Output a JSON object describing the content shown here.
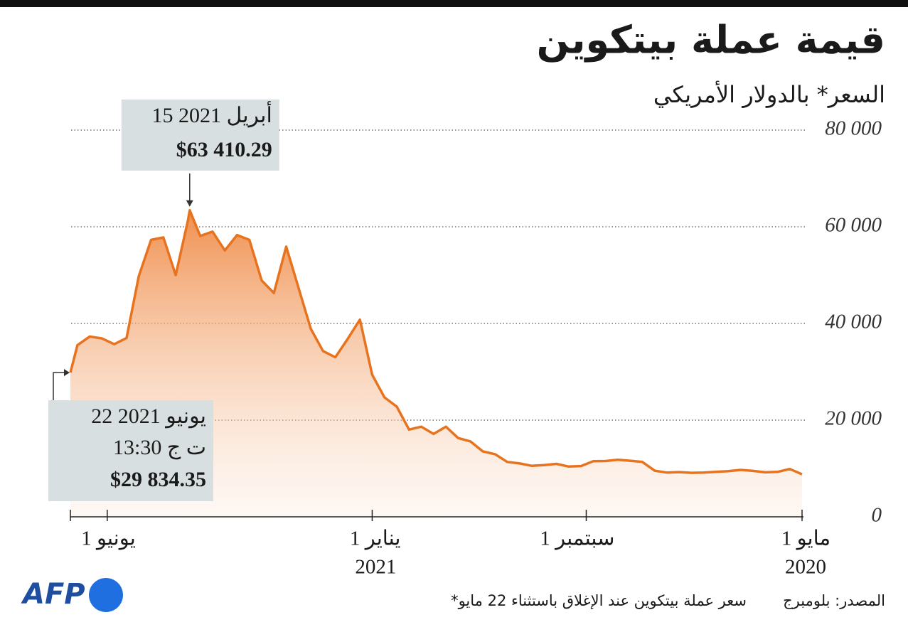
{
  "chart_data": {
    "type": "area",
    "title": "قيمة عملة بيتكوين",
    "subtitle": "السعر* بالدولار الأمريكي",
    "x_direction": "rtl",
    "grid": true,
    "color": "#e8731e",
    "xlim": [
      "2020-05-01",
      "2021-06-22"
    ],
    "xticks": [
      {
        "value": "2020-05-01",
        "label": "1 مايو"
      },
      {
        "value": "2020-09-01",
        "label": "1 سبتمبر"
      },
      {
        "value": "2021-01-01",
        "label": "1 يناير"
      },
      {
        "value": "2021-06-01",
        "label": "1 يونيو"
      }
    ],
    "xtick_years": [
      {
        "value": "2020-05-01",
        "label": "2020"
      },
      {
        "value": "2021-01-01",
        "label": "2021"
      }
    ],
    "ylim": [
      0,
      80000
    ],
    "yticks": [
      0,
      {
        "value": 20000,
        "label": "20 000"
      },
      {
        "value": 40000,
        "label": "40 000"
      },
      {
        "value": 60000,
        "label": "60 000"
      },
      {
        "value": 80000,
        "label": "80 000"
      }
    ],
    "x": [
      "2020-05-01",
      "2020-05-08",
      "2020-05-15",
      "2020-05-22",
      "2020-05-29",
      "2020-06-05",
      "2020-06-12",
      "2020-06-19",
      "2020-06-26",
      "2020-07-03",
      "2020-07-10",
      "2020-07-17",
      "2020-07-24",
      "2020-07-31",
      "2020-08-07",
      "2020-08-14",
      "2020-08-21",
      "2020-08-28",
      "2020-09-04",
      "2020-09-11",
      "2020-09-18",
      "2020-09-25",
      "2020-10-02",
      "2020-10-09",
      "2020-10-16",
      "2020-10-23",
      "2020-10-30",
      "2020-11-06",
      "2020-11-13",
      "2020-11-20",
      "2020-11-27",
      "2020-12-04",
      "2020-12-11",
      "2020-12-18",
      "2020-12-25",
      "2021-01-01",
      "2021-01-08",
      "2021-01-15",
      "2021-01-22",
      "2021-01-29",
      "2021-02-05",
      "2021-02-12",
      "2021-02-19",
      "2021-02-26",
      "2021-03-05",
      "2021-03-12",
      "2021-03-19",
      "2021-03-26",
      "2021-04-02",
      "2021-04-09",
      "2021-04-15",
      "2021-04-16",
      "2021-04-23",
      "2021-04-30",
      "2021-05-07",
      "2021-05-14",
      "2021-05-21",
      "2021-05-28",
      "2021-06-04",
      "2021-06-11",
      "2021-06-18",
      "2021-06-22"
    ],
    "values": [
      8800,
      9900,
      9300,
      9200,
      9500,
      9700,
      9450,
      9300,
      9150,
      9100,
      9250,
      9150,
      9550,
      11350,
      11600,
      11800,
      11550,
      11500,
      10500,
      10400,
      10950,
      10700,
      10550,
      11050,
      11350,
      12950,
      13550,
      15600,
      16300,
      18650,
      17150,
      18650,
      18050,
      22800,
      24700,
      29400,
      40800,
      36800,
      33000,
      34300,
      38900,
      47400,
      55900,
      46300,
      48900,
      57300,
      58300,
      55100,
      59000,
      58100,
      63410.29,
      61300,
      50000,
      57800,
      57300,
      49800,
      37000,
      35700,
      36900,
      37300,
      35500,
      29834.35
    ],
    "annotations": [
      {
        "date": "2021-04-15",
        "value": 63410.29,
        "date_label": "15 أبريل 2021",
        "value_label": "$63 410.29"
      },
      {
        "date": "2021-06-22",
        "value": 29834.35,
        "date_label": "22 يونيو 2021",
        "time_label": "13:30 ت ج",
        "value_label": "$29 834.35"
      }
    ]
  },
  "footer": {
    "source": "المصدر: بلومبرج",
    "note": "*سعر عملة بيتكوين عند الإغلاق باستثناء 22 مايو",
    "logo": "AFP"
  }
}
